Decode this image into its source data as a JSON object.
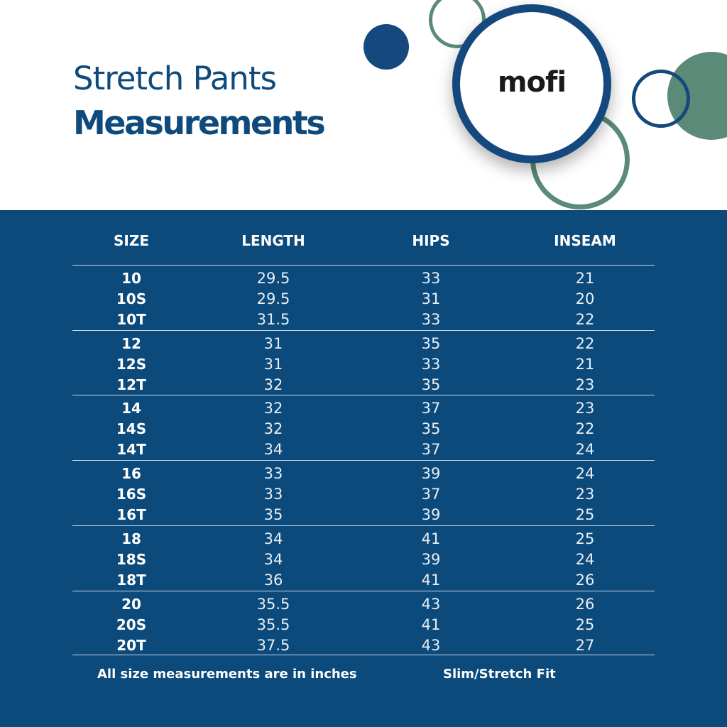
{
  "title": {
    "line1": "Stretch Pants",
    "line2": "Measurements"
  },
  "logo": {
    "text": "mofi"
  },
  "table": {
    "headers": [
      "SIZE",
      "LENGTH",
      "HIPS",
      "INSEAM"
    ],
    "groups": [
      [
        [
          "10",
          "29.5",
          "33",
          "21"
        ],
        [
          "10S",
          "29.5",
          "31",
          "20"
        ],
        [
          "10T",
          "31.5",
          "33",
          "22"
        ]
      ],
      [
        [
          "12",
          "31",
          "35",
          "22"
        ],
        [
          "12S",
          "31",
          "33",
          "21"
        ],
        [
          "12T",
          "32",
          "35",
          "23"
        ]
      ],
      [
        [
          "14",
          "32",
          "37",
          "23"
        ],
        [
          "14S",
          "32",
          "35",
          "22"
        ],
        [
          "14T",
          "34",
          "37",
          "24"
        ]
      ],
      [
        [
          "16",
          "33",
          "39",
          "24"
        ],
        [
          "16S",
          "33",
          "37",
          "23"
        ],
        [
          "16T",
          "35",
          "39",
          "25"
        ]
      ],
      [
        [
          "18",
          "34",
          "41",
          "25"
        ],
        [
          "18S",
          "34",
          "39",
          "24"
        ],
        [
          "18T",
          "36",
          "41",
          "26"
        ]
      ],
      [
        [
          "20",
          "35.5",
          "43",
          "26"
        ],
        [
          "20S",
          "35.5",
          "41",
          "25"
        ],
        [
          "20T",
          "37.5",
          "43",
          "27"
        ]
      ]
    ]
  },
  "footer": {
    "units_note": "All size measurements are in inches",
    "fit_note": "Slim/Stretch Fit"
  },
  "colors": {
    "navy": "#0c4a7b",
    "ring_blue": "#15497e",
    "sage_green": "#5b8a78",
    "title_blue": "#0e4a7c"
  }
}
